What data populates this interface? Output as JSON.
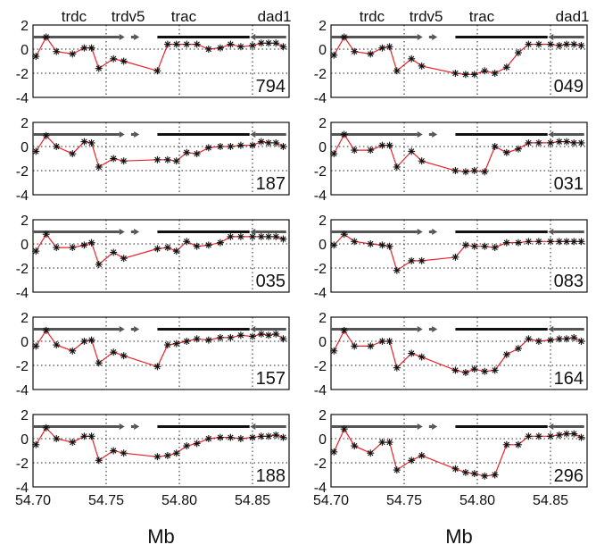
{
  "chart_data": {
    "type": "line",
    "xlabel": "Mb",
    "ylim": [
      -4,
      2
    ],
    "xlim": [
      54.7,
      54.875
    ],
    "xticks": [
      54.7,
      54.75,
      54.8,
      54.85
    ],
    "xtick_labels": [
      "54.70",
      "54.75",
      "54.80",
      "54.85"
    ],
    "yticks": [
      2,
      0,
      -2,
      -4
    ],
    "ytick_labels": [
      "2",
      "0",
      "-2",
      "-4"
    ],
    "grid": true,
    "series_color": "#e8222a",
    "marker_color": "#111111",
    "gene_labels": [
      {
        "text": "trdc",
        "x": 54.728
      },
      {
        "text": "trdv5",
        "x": 54.765
      },
      {
        "text": "trac",
        "x": 54.803
      },
      {
        "text": "dad1",
        "x": 54.865
      }
    ],
    "gene_bar_y": 1.0,
    "gene_segments": [
      {
        "from": 54.7,
        "to": 54.759,
        "direction": "right",
        "color": "#555555"
      },
      {
        "from": 54.767,
        "to": 54.769,
        "direction": "right",
        "color": "#555555"
      },
      {
        "from": 54.785,
        "to": 54.848,
        "direction": "none",
        "color": "#111111"
      },
      {
        "from": 54.852,
        "to": 54.873,
        "direction": "left",
        "color": "#555555"
      }
    ],
    "x": [
      54.702,
      54.709,
      54.716,
      54.727,
      54.735,
      54.74,
      54.745,
      54.755,
      54.762,
      54.785,
      54.792,
      54.798,
      54.805,
      54.812,
      54.82,
      54.828,
      54.835,
      54.842,
      54.85,
      54.856,
      54.861,
      54.866,
      54.871
    ],
    "panels": [
      {
        "label": "794",
        "column": 0,
        "row": 0,
        "values": [
          -0.6,
          1.0,
          -0.2,
          -0.4,
          0.1,
          0.1,
          -1.6,
          -0.8,
          -1.0,
          -1.8,
          0.4,
          0.4,
          0.4,
          0.4,
          0.0,
          0.1,
          0.4,
          0.2,
          0.3,
          0.5,
          0.5,
          0.5,
          0.2
        ]
      },
      {
        "label": "049",
        "column": 1,
        "row": 0,
        "values": [
          -0.5,
          1.0,
          -0.2,
          -0.4,
          0.1,
          0.2,
          -1.8,
          -0.8,
          -1.4,
          -2.0,
          -2.1,
          -2.1,
          -1.8,
          -2.0,
          -1.5,
          -0.3,
          0.4,
          0.4,
          0.4,
          0.3,
          0.4,
          0.4,
          0.3
        ]
      },
      {
        "label": "187",
        "column": 0,
        "row": 1,
        "values": [
          -0.4,
          0.9,
          0.0,
          -0.6,
          0.4,
          0.3,
          -1.7,
          -1.0,
          -1.2,
          -1.1,
          -1.1,
          -1.2,
          -0.5,
          -0.6,
          -0.1,
          0.0,
          0.0,
          0.1,
          0.1,
          0.4,
          0.3,
          0.3,
          0.0
        ]
      },
      {
        "label": "031",
        "column": 1,
        "row": 1,
        "values": [
          -0.6,
          1.0,
          -0.3,
          -0.3,
          0.1,
          0.1,
          -1.7,
          -0.4,
          -1.2,
          -2.0,
          -2.1,
          -2.0,
          -2.1,
          0.0,
          -0.5,
          -0.2,
          0.3,
          0.3,
          0.3,
          0.4,
          0.4,
          0.3,
          0.3
        ]
      },
      {
        "label": "035",
        "column": 0,
        "row": 2,
        "values": [
          -0.6,
          0.8,
          -0.3,
          -0.3,
          -0.1,
          0.1,
          -1.7,
          -0.7,
          -1.2,
          -0.4,
          -0.3,
          -0.6,
          0.2,
          -0.2,
          -0.1,
          0.1,
          0.6,
          0.6,
          0.6,
          0.6,
          0.6,
          0.6,
          0.4
        ]
      },
      {
        "label": "083",
        "column": 1,
        "row": 2,
        "values": [
          -0.1,
          0.8,
          0.2,
          0.0,
          -0.1,
          -0.2,
          -2.2,
          -1.4,
          -1.4,
          -1.1,
          -0.1,
          -0.2,
          -0.2,
          -0.3,
          0.1,
          0.1,
          0.2,
          0.2,
          0.2,
          0.2,
          0.2,
          0.2,
          0.2
        ]
      },
      {
        "label": "157",
        "column": 0,
        "row": 3,
        "values": [
          -0.4,
          0.9,
          -0.3,
          -0.8,
          0.0,
          0.1,
          -1.8,
          -0.9,
          -1.2,
          -2.1,
          -0.3,
          -0.2,
          0.0,
          0.2,
          0.1,
          0.3,
          0.3,
          0.5,
          0.4,
          0.6,
          0.5,
          0.6,
          0.2
        ]
      },
      {
        "label": "164",
        "column": 1,
        "row": 3,
        "values": [
          -0.8,
          0.9,
          -0.4,
          -0.4,
          0.0,
          0.0,
          -2.2,
          -1.0,
          -1.3,
          -2.4,
          -2.6,
          -2.3,
          -2.5,
          -2.4,
          -1.1,
          -0.6,
          0.2,
          0.0,
          0.1,
          0.2,
          0.2,
          0.3,
          0.0
        ]
      },
      {
        "label": "188",
        "column": 0,
        "row": 4,
        "values": [
          -0.5,
          0.9,
          0.0,
          -0.3,
          0.2,
          0.2,
          -1.8,
          -1.0,
          -1.2,
          -1.5,
          -1.4,
          -1.2,
          -0.6,
          -0.4,
          0.0,
          0.1,
          0.1,
          0.0,
          0.1,
          0.2,
          0.2,
          0.3,
          0.1
        ]
      },
      {
        "label": "296",
        "column": 1,
        "row": 4,
        "values": [
          -1.1,
          0.8,
          -0.6,
          -1.2,
          -0.3,
          -0.3,
          -2.6,
          -1.8,
          -1.4,
          -2.5,
          -2.8,
          -2.9,
          -3.1,
          -3.0,
          -0.5,
          -0.5,
          0.2,
          0.2,
          0.2,
          0.3,
          0.4,
          0.4,
          0.1
        ]
      }
    ]
  }
}
